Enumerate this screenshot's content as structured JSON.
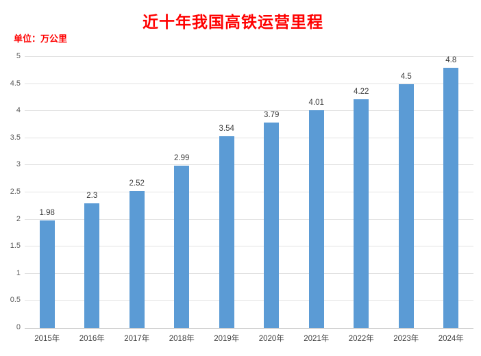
{
  "chart_data": {
    "type": "bar",
    "title": "近十年我国高铁运营里程",
    "unit_label": "单位：万公里",
    "categories": [
      "2015年",
      "2016年",
      "2017年",
      "2018年",
      "2019年",
      "2020年",
      "2021年",
      "2022年",
      "2023年",
      "2024年"
    ],
    "values": [
      1.98,
      2.3,
      2.52,
      2.99,
      3.54,
      3.79,
      4.01,
      4.22,
      4.5,
      4.8
    ],
    "value_labels": [
      "1.98",
      "2.3",
      "2.52",
      "2.99",
      "3.54",
      "3.79",
      "4.01",
      "4.22",
      "4.5",
      "4.8"
    ],
    "xlabel": "",
    "ylabel": "",
    "ylim": [
      0,
      5
    ],
    "y_ticks": [
      0,
      0.5,
      1,
      1.5,
      2,
      2.5,
      3,
      3.5,
      4,
      4.5,
      5
    ],
    "y_tick_labels": [
      "0",
      "0.5",
      "1",
      "1.5",
      "2",
      "2.5",
      "3",
      "3.5",
      "4",
      "4.5",
      "5"
    ],
    "grid": true,
    "legend_position": "none",
    "colors": {
      "background": "#FFFFFF",
      "bar": "#5B9BD5",
      "title": "#FF0000",
      "unit": "#FF0000",
      "gridline": "#E2E2E2",
      "axis_line": "#BFBFBF",
      "y_tick": "#595959",
      "x_tick": "#404040",
      "value_label": "#3A3A3A"
    }
  }
}
